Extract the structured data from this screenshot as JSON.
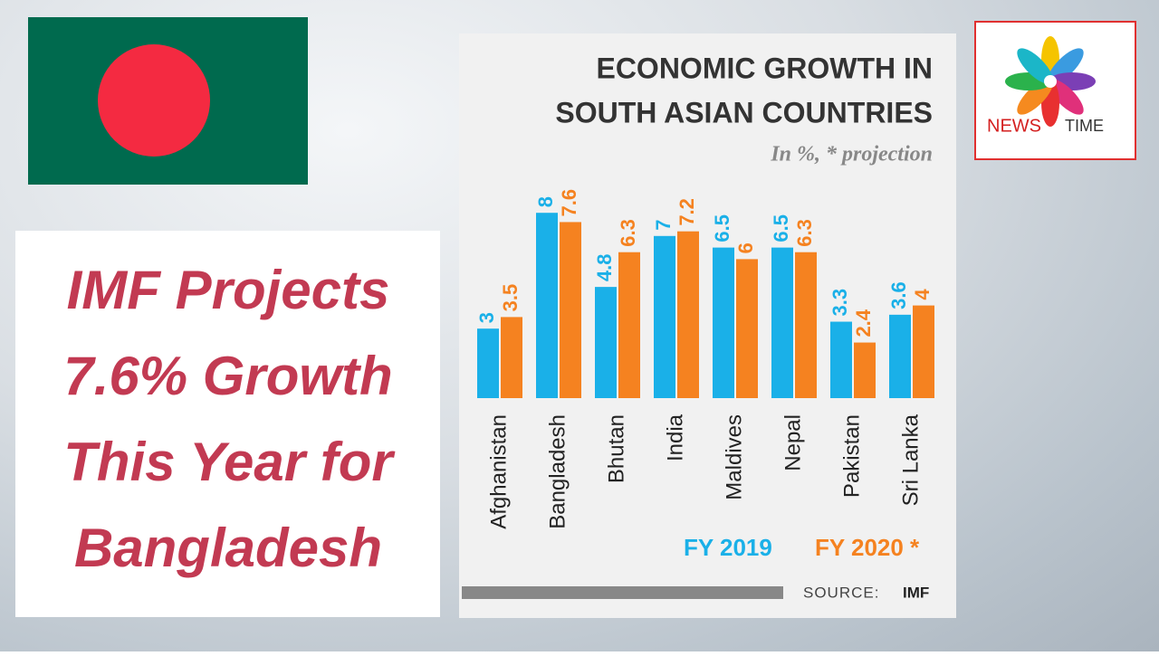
{
  "headline": [
    "IMF Projects",
    "7.6% Growth",
    "This Year for",
    "Bangladesh"
  ],
  "logo": {
    "words": [
      "NEWS",
      "TIME"
    ]
  },
  "chart_data": {
    "type": "bar",
    "title": [
      "ECONOMIC GROWTH IN",
      "SOUTH ASIAN COUNTRIES"
    ],
    "subtitle": "In %, * projection",
    "categories": [
      "Afghanistan",
      "Bangladesh",
      "Bhutan",
      "India",
      "Maldives",
      "Nepal",
      "Pakistan",
      "Sri Lanka"
    ],
    "series": [
      {
        "name": "FY 2019",
        "color": "#1ab0e8",
        "values": [
          3,
          8,
          4.8,
          7,
          6.5,
          6.5,
          3.3,
          3.6
        ]
      },
      {
        "name": "FY 2020 *",
        "color": "#f58220",
        "values": [
          3.5,
          7.6,
          6.3,
          7.2,
          6,
          6.3,
          2.4,
          4
        ]
      }
    ],
    "source": [
      "SOURCE:",
      "IMF"
    ]
  }
}
